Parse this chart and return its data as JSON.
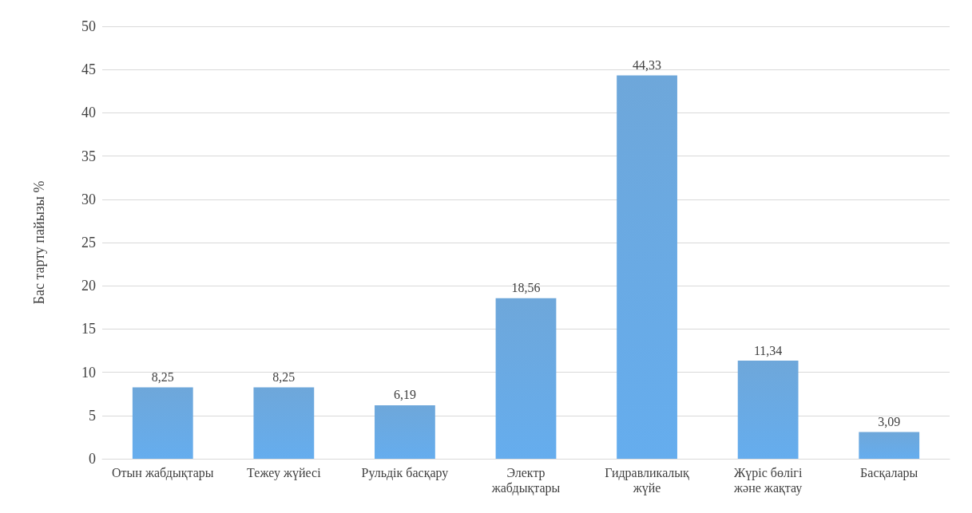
{
  "chart_data": {
    "type": "bar",
    "ylabel": "Бас тарту пайызы %",
    "categories": [
      "Отын жабдықтары",
      "Тежеу жүйесі",
      "Рульдік басқару",
      "Электр жабдықтары",
      "Гидравликалық жүйе",
      "Жүріс бөлігі және жақтау",
      "Басқалары"
    ],
    "values": [
      8.25,
      8.25,
      6.19,
      18.56,
      44.33,
      11.34,
      3.09
    ],
    "value_labels": [
      "8,25",
      "8,25",
      "6,19",
      "18,56",
      "44,33",
      "11,34",
      "3,09"
    ],
    "color": "#5b9bd5",
    "ylim": [
      0,
      50
    ],
    "yticks": [
      0,
      5,
      10,
      15,
      20,
      25,
      30,
      35,
      40,
      45,
      50
    ],
    "grid": "y"
  }
}
